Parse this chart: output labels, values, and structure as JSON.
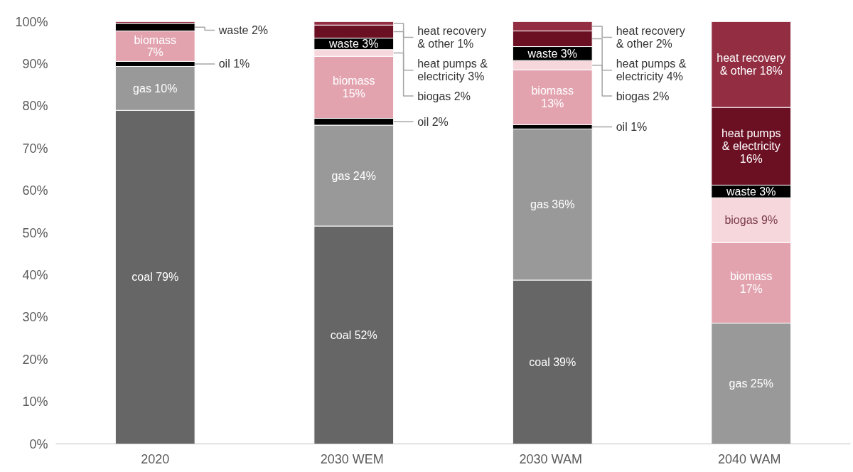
{
  "chart_data": {
    "type": "bar",
    "stacked": true,
    "categories": [
      "2020",
      "2030  WEM",
      "2030  WAM",
      "2040  WAM"
    ],
    "ylim": [
      0,
      100
    ],
    "yticks": [
      {
        "value": 0,
        "label": "0%"
      },
      {
        "value": 10,
        "label": "10%"
      },
      {
        "value": 20,
        "label": "20%"
      },
      {
        "value": 30,
        "label": "30%"
      },
      {
        "value": 40,
        "label": "40%"
      },
      {
        "value": 50,
        "label": "50%"
      },
      {
        "value": 60,
        "label": "60%"
      },
      {
        "value": 70,
        "label": "70%"
      },
      {
        "value": 80,
        "label": "80%"
      },
      {
        "value": 90,
        "label": "90%"
      },
      {
        "value": 100,
        "label": "100%"
      }
    ],
    "grid": false,
    "series": [
      {
        "color": "#666666",
        "values": [
          79,
          51.6,
          38.8,
          null
        ],
        "value_labels": [
          "coal 79%",
          "coal 52%",
          "coal 39%",
          null
        ]
      },
      {
        "color": "#999999",
        "values": [
          10.4,
          23.9,
          35.8,
          28.6
        ],
        "value_labels": [
          "gas 10%",
          "gas 24%",
          "gas 36%",
          "gas 25%"
        ]
      },
      {
        "color": "#000000",
        "values": [
          1.2,
          1.6,
          1.0,
          null
        ],
        "value_labels": [
          "oil 1%",
          "oil 2%",
          "oil 1%",
          null
        ]
      },
      {
        "color": "#e2a3af",
        "values": [
          7.2,
          14.7,
          13.0,
          19.1
        ],
        "value_labels": [
          "biomass\n7%",
          "biomass\n15%",
          "biomass\n13%",
          "biomass\n17%"
        ]
      },
      {
        "color": "#f6d7dc",
        "values": [
          null,
          1.6,
          2.2,
          10.6
        ],
        "value_labels": [
          null,
          "biogas 2%",
          "biogas 2%",
          "biogas 9%"
        ]
      },
      {
        "color": "#000000",
        "values": [
          1.8,
          2.7,
          3.3,
          3.0
        ],
        "value_labels": [
          "waste 2%",
          "waste 3%",
          "waste 3%",
          "waste 3%"
        ]
      },
      {
        "color": "#6b0f22",
        "values": [
          null,
          3.1,
          3.7,
          18.4
        ],
        "value_labels": [
          null,
          "heat pumps &\nelectricity 3%",
          "heat pumps &\nelectricity 4%",
          "heat pumps\n& electricity\n16%"
        ]
      },
      {
        "color": "#922d42",
        "values": [
          0.4,
          0.8,
          2.2,
          20.3
        ],
        "value_labels": [
          null,
          "heat recovery\n& other 1%",
          "heat recovery\n& other 2%",
          "heat recovery\n& other 18%"
        ]
      }
    ]
  }
}
